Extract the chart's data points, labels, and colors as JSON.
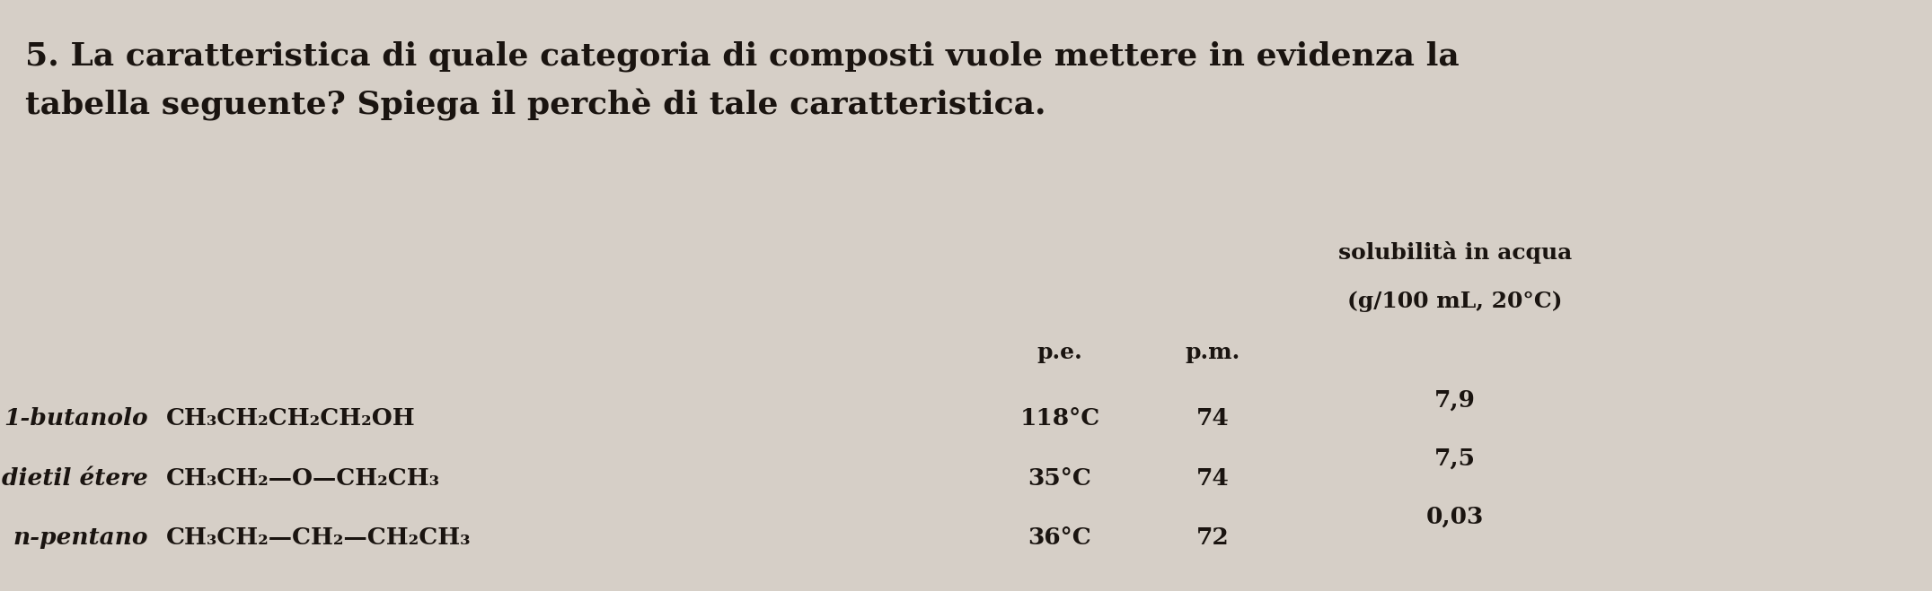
{
  "background_color": "#d6cfc7",
  "title_line1": "5. La caratteristica di quale categoria di composti vuole mettere in evidenza la",
  "title_line2": "tabella seguente? Spiega il perchè di tale caratteristica.",
  "title_fontsize": 26,
  "title_fontfamily": "serif",
  "header_solubilita_line1": "solubilità in acqua",
  "header_solubilita_line2": "(g/100 mL, 20°C)",
  "header_pe": "p.e.",
  "header_pm": "p.m.",
  "rows": [
    {
      "name": "1-butanolo",
      "formula": "CH₃CH₂CH₂CH₂OH",
      "pe": "118°C",
      "pm": "74",
      "sol": "7,9"
    },
    {
      "name": "dietil étere",
      "formula": "CH₃CH₂—O—CH₂CH₃",
      "pe": "35°C",
      "pm": "74",
      "sol": "7,5"
    },
    {
      "name": "n-pentano",
      "formula": "CH₃CH₂—CH₂—CH₂CH₃",
      "pe": "36°C",
      "pm": "72",
      "sol": "0,03"
    }
  ],
  "text_color": "#1a1410",
  "formula_fontsize": 19,
  "data_fontsize": 19,
  "name_fontsize": 19,
  "header_fontsize": 18
}
